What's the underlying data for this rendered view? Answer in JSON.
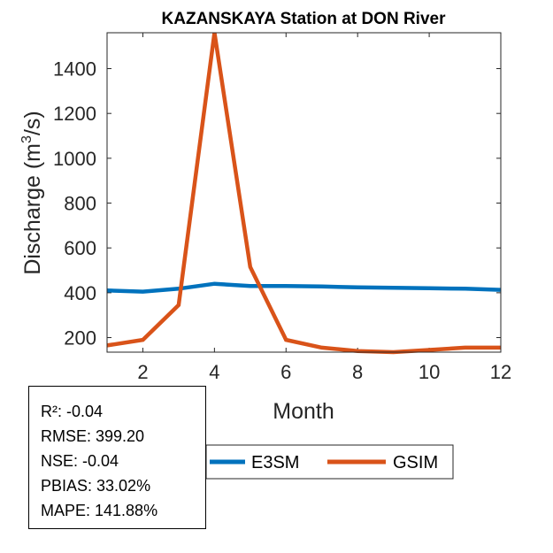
{
  "chart_data": {
    "type": "line",
    "title": "KAZANSKAYA  Station at  DON  River",
    "xlabel": "Month",
    "ylabel_main": "Discharge (m",
    "ylabel_sup": "3",
    "ylabel_tail": "/s)",
    "xlim": [
      1,
      12
    ],
    "ylim": [
      135,
      1560
    ],
    "xticks": [
      2,
      4,
      6,
      8,
      10,
      12
    ],
    "yticks": [
      200,
      400,
      600,
      800,
      1000,
      1200,
      1400
    ],
    "x": [
      1,
      2,
      3,
      4,
      5,
      6,
      7,
      8,
      9,
      10,
      11,
      12
    ],
    "series": [
      {
        "name": "E3SM",
        "color": "#0072BD",
        "values": [
          410,
          405,
          418,
          440,
          430,
          430,
          428,
          424,
          422,
          420,
          418,
          413
        ]
      },
      {
        "name": "GSIM",
        "color": "#D95319",
        "values": [
          165,
          190,
          345,
          1560,
          515,
          190,
          155,
          140,
          135,
          145,
          155,
          155
        ]
      }
    ],
    "legend_placement": "bottom-center",
    "grid": false
  },
  "stats": [
    "R²: -0.04",
    "RMSE: 399.20",
    "NSE: -0.04",
    "PBIAS: 33.02%",
    "MAPE: 141.88%"
  ]
}
